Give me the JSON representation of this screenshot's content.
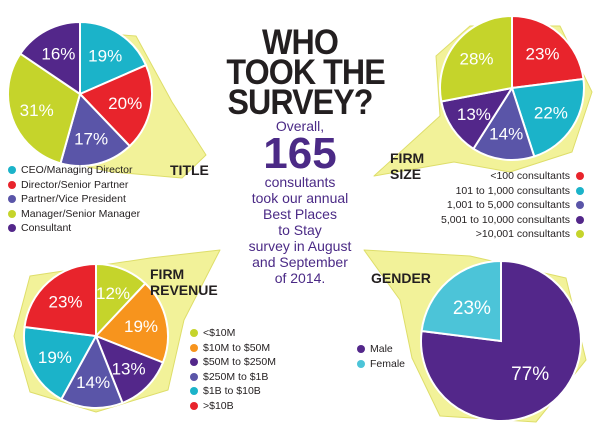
{
  "headline": {
    "line1": "WHO",
    "line2": "TOOK THE",
    "line3": "SURVEY?"
  },
  "summary": {
    "line1": "Overall,",
    "count": "165",
    "line2": "consultants",
    "line3": "took our annual",
    "line4": "Best Places",
    "line5": "to Stay",
    "line6": "survey in August",
    "line7": "and September",
    "line8": "of 2014."
  },
  "chart_data": [
    {
      "type": "pie",
      "title": "TITLE",
      "categories": [
        "CEO/Managing Director",
        "Director/Senior Partner",
        "Partner/Vice President",
        "Manager/Senior Manager",
        "Consultant"
      ],
      "values": [
        19,
        20,
        17,
        31,
        16
      ],
      "labels": [
        "19%",
        "20%",
        "17%",
        "31%",
        "16%"
      ],
      "colors": [
        "#1bb3c9",
        "#e8242c",
        "#5a55a8",
        "#c5d42b",
        "#53278a"
      ],
      "legend_position": "bottom-left"
    },
    {
      "type": "pie",
      "title": "FIRM SIZE",
      "categories": [
        "<100 consultants",
        "101 to 1,000 consultants",
        "1,001 to 5,000 consultants",
        "5,001 to 10,000 consultants",
        ">10,001 consultants"
      ],
      "values": [
        23,
        22,
        14,
        13,
        28
      ],
      "labels": [
        "23%",
        "22%",
        "14%",
        "13%",
        "28%"
      ],
      "colors": [
        "#e8242c",
        "#1bb3c9",
        "#5a55a8",
        "#53278a",
        "#c5d42b"
      ],
      "legend_position": "bottom-right"
    },
    {
      "type": "pie",
      "title": "FIRM REVENUE",
      "categories": [
        "<$10M",
        "$10M to $50M",
        "$50M to $250M",
        "$250M to $1B",
        "$1B to $10B",
        ">$10B"
      ],
      "values": [
        12,
        19,
        13,
        14,
        19,
        23
      ],
      "labels": [
        "12%",
        "19%",
        "13%",
        "14%",
        "19%",
        "23%"
      ],
      "colors": [
        "#c5d42b",
        "#f7941d",
        "#53278a",
        "#5a55a8",
        "#1bb3c9",
        "#e8242c"
      ],
      "legend_position": "right"
    },
    {
      "type": "pie",
      "title": "GENDER",
      "categories": [
        "Male",
        "Female"
      ],
      "values": [
        77,
        23
      ],
      "labels": [
        "77%",
        "23%"
      ],
      "colors": [
        "#53278a",
        "#4cc4d8"
      ],
      "legend_position": "left"
    }
  ],
  "colors": {
    "callout": "#f2f299",
    "callout_edge": "#dede6a",
    "text_dark": "#231f20",
    "accent_purple": "#4b2a86"
  }
}
